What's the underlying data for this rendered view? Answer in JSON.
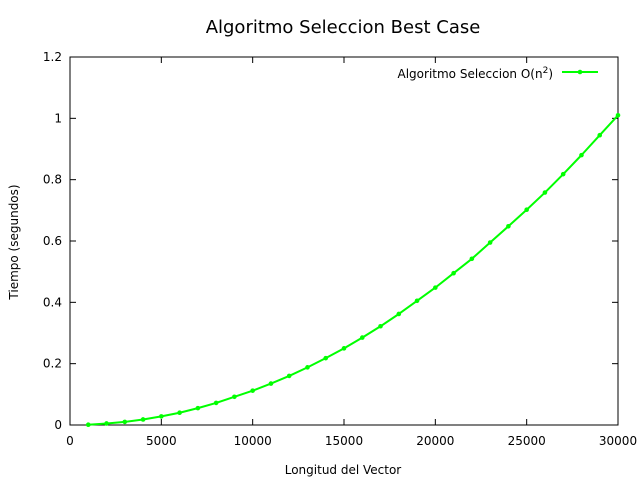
{
  "chart_data": {
    "type": "line",
    "title": "Algoritmo Seleccion Best Case",
    "xlabel": "Longitud del Vector",
    "ylabel": "Tiempo (segundos)",
    "xlim": [
      0,
      30000
    ],
    "ylim": [
      0,
      1.2
    ],
    "x_ticks": [
      0,
      5000,
      10000,
      15000,
      20000,
      25000,
      30000
    ],
    "y_ticks": [
      0,
      0.2,
      0.4,
      0.6,
      0.8,
      1,
      1.2
    ],
    "grid": false,
    "legend_position": "top-right",
    "series": [
      {
        "name": "Algoritmo Seleccion O(n2)",
        "legend_base": "Algoritmo Seleccion O(n",
        "legend_sup": "2",
        "legend_tail": ")",
        "color": "#00ff00",
        "x": [
          1000,
          2000,
          3000,
          4000,
          5000,
          6000,
          7000,
          8000,
          9000,
          10000,
          11000,
          12000,
          13000,
          14000,
          15000,
          16000,
          17000,
          18000,
          19000,
          20000,
          21000,
          22000,
          23000,
          24000,
          25000,
          26000,
          27000,
          28000,
          29000,
          30000
        ],
        "y": [
          0.001,
          0.005,
          0.01,
          0.018,
          0.028,
          0.04,
          0.055,
          0.072,
          0.092,
          0.112,
          0.135,
          0.16,
          0.188,
          0.218,
          0.25,
          0.285,
          0.322,
          0.362,
          0.405,
          0.448,
          0.495,
          0.542,
          0.595,
          0.648,
          0.702,
          0.758,
          0.818,
          0.88,
          0.945,
          1.01
        ]
      }
    ]
  }
}
